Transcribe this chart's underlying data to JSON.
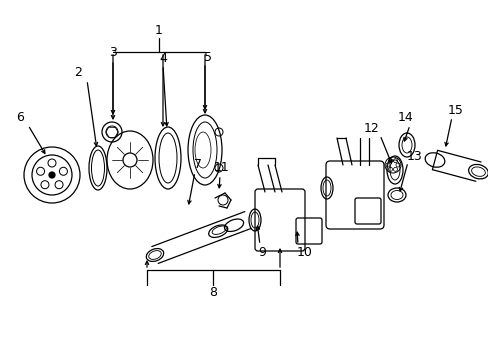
{
  "bg_color": "#ffffff",
  "line_color": "#000000",
  "fig_width": 4.89,
  "fig_height": 3.6,
  "dpi": 100,
  "font_size": 9.0
}
